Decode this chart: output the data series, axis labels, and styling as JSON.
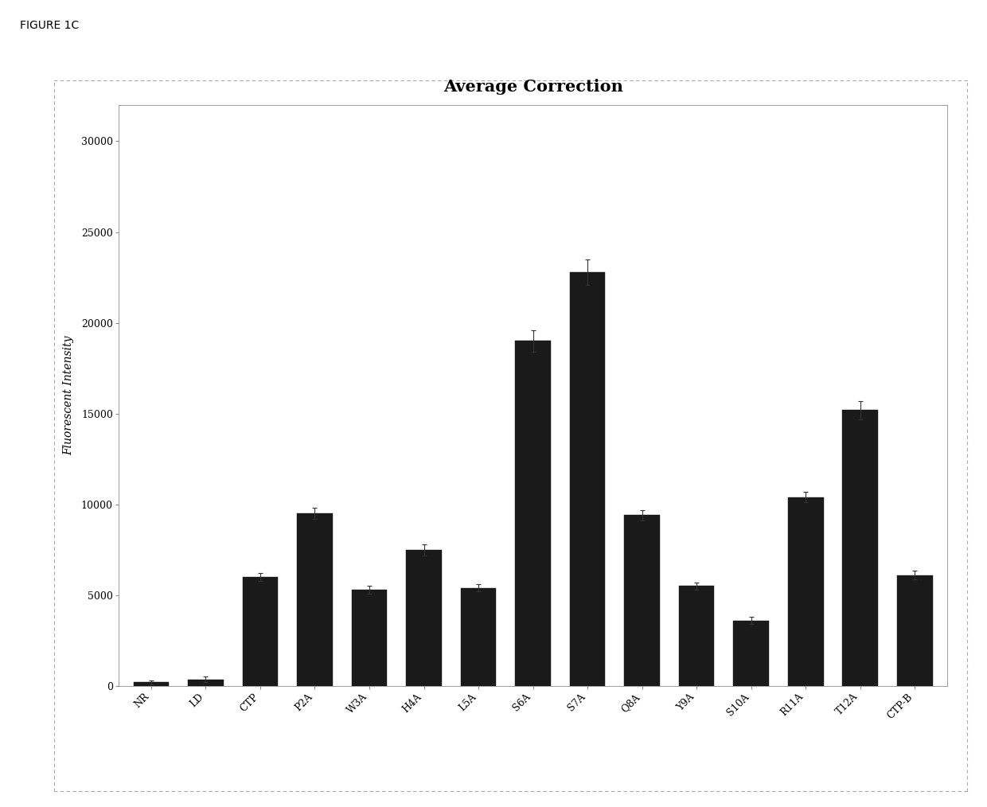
{
  "title": "Average Correction",
  "ylabel": "Fluorescent Intensity",
  "categories": [
    "NR",
    "LD",
    "CTP",
    "P2A",
    "W3A",
    "H4A",
    "L5A",
    "S6A",
    "S7A",
    "Q8A",
    "Y9A",
    "S10A",
    "R11A",
    "T12A",
    "CTP-B"
  ],
  "values": [
    200,
    350,
    6000,
    9500,
    5300,
    7500,
    5400,
    19000,
    22800,
    9400,
    5500,
    3600,
    10400,
    15200,
    6100
  ],
  "errors": [
    100,
    150,
    200,
    300,
    200,
    300,
    200,
    600,
    700,
    300,
    200,
    200,
    300,
    500,
    250
  ],
  "bar_color": "#1a1a1a",
  "ylim": [
    0,
    32000
  ],
  "yticks": [
    0,
    5000,
    10000,
    15000,
    20000,
    25000,
    30000
  ],
  "figure_label": "FIGURE 1C",
  "background_color": "#ffffff",
  "plot_bg_color": "#ffffff",
  "title_fontsize": 15,
  "label_fontsize": 10,
  "tick_fontsize": 9,
  "fig_label_fontsize": 10
}
